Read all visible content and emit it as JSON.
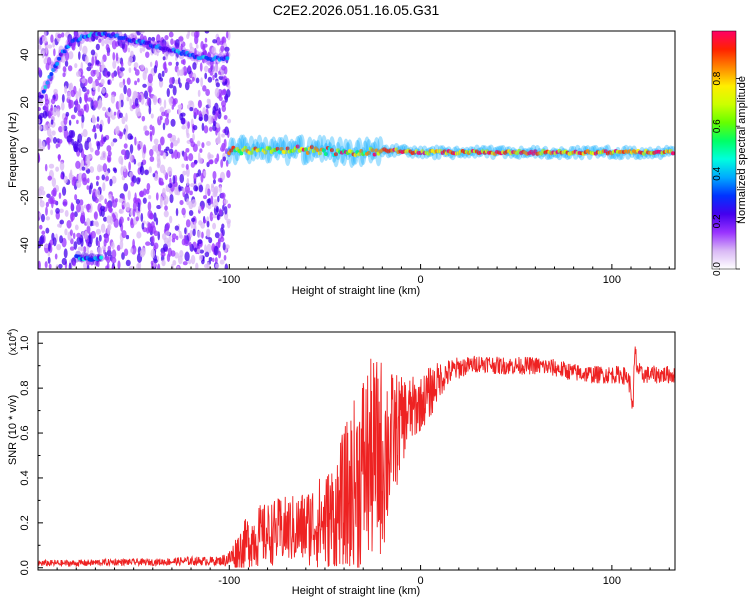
{
  "title": "C2E2.2026.051.16.05.G31",
  "colors": {
    "snr_line": "#ee2222",
    "axis": "#000000",
    "background": "#ffffff"
  },
  "chart_data": [
    {
      "type": "heatmap",
      "name": "spectrogram",
      "xlabel": "Height of straight line (km)",
      "ylabel": "Frequency (Hz)",
      "xlim": [
        -200,
        133
      ],
      "ylim": [
        -50,
        50
      ],
      "x_ticks": [
        -100,
        0,
        100
      ],
      "x_tick_labels": [
        "-100",
        "0",
        "100"
      ],
      "y_ticks": [
        -40,
        -20,
        0,
        20,
        40
      ],
      "y_tick_labels": [
        "-40",
        "-20",
        "0",
        "20",
        "40"
      ],
      "colorbar": {
        "label": "Normalized spectral amplitude",
        "range": [
          0,
          1
        ],
        "ticks": [
          0.0,
          0.2,
          0.4,
          0.6,
          0.8
        ],
        "tick_labels": [
          "0.0",
          "0.2",
          "0.4",
          "0.6",
          "0.8"
        ],
        "colormap": [
          "#ffffff",
          "#d9b8f5",
          "#9933ff",
          "#4400ee",
          "#0033ff",
          "#00aaff",
          "#00ffdd",
          "#00ff66",
          "#66ff00",
          "#ccff00",
          "#ffee00",
          "#ff8800",
          "#ff2200",
          "#ff0066"
        ]
      },
      "features": [
        {
          "label": "diffuse noise",
          "x_range": [
            -200,
            -100
          ],
          "f_range": [
            -50,
            50
          ],
          "amplitude": 0.12
        },
        {
          "label": "upper arc",
          "points": [
            [
              -198,
              23
            ],
            [
              -193,
              32
            ],
            [
              -188,
              40
            ],
            [
              -183,
              45
            ],
            [
              -175,
              48
            ],
            [
              -165,
              49
            ],
            [
              -150,
              46
            ],
            [
              -140,
              44
            ],
            [
              -130,
              42
            ],
            [
              -120,
              40
            ],
            [
              -110,
              38
            ],
            [
              -100,
              39
            ]
          ],
          "amplitude": 0.4
        },
        {
          "label": "lower blob",
          "points": [
            [
              -180,
              -45
            ],
            [
              -172,
              -46
            ],
            [
              -166,
              -45
            ]
          ],
          "amplitude": 0.45
        },
        {
          "label": "main signal",
          "points": [
            [
              -100,
              0
            ],
            [
              -80,
              0
            ],
            [
              -60,
              0
            ],
            [
              -40,
              -1
            ],
            [
              -30,
              -1
            ],
            [
              -20,
              0
            ],
            [
              0,
              -1
            ],
            [
              20,
              -1
            ],
            [
              40,
              -1
            ],
            [
              60,
              -1
            ],
            [
              80,
              -1
            ],
            [
              100,
              -1
            ],
            [
              120,
              -1
            ],
            [
              133,
              -1
            ]
          ],
          "amplitude": 0.9
        }
      ]
    },
    {
      "type": "line",
      "name": "snr",
      "xlabel": "Height of straight line (km)",
      "ylabel": "SNR (10 * v/v)",
      "y_multiplier_label": "(x10",
      "y_multiplier_exp": "4",
      "xlim": [
        -200,
        133
      ],
      "ylim": [
        -0.01,
        1.05
      ],
      "x_ticks": [
        -100,
        0,
        100
      ],
      "x_tick_labels": [
        "-100",
        "0",
        "100"
      ],
      "y_ticks": [
        0.0,
        0.2,
        0.4,
        0.6,
        0.8,
        1.0
      ],
      "y_tick_labels": [
        "0.0",
        "0.2",
        "0.4",
        "0.6",
        "0.8",
        "1.0"
      ],
      "series": [
        {
          "name": "SNR",
          "x": [
            -200,
            -180,
            -160,
            -140,
            -120,
            -105,
            -100,
            -95,
            -90,
            -85,
            -80,
            -75,
            -70,
            -65,
            -60,
            -55,
            -50,
            -45,
            -40,
            -35,
            -30,
            -25,
            -20,
            -18,
            -15,
            -12,
            -10,
            -8,
            -5,
            -2,
            0,
            5,
            10,
            15,
            20,
            25,
            30,
            35,
            40,
            50,
            60,
            70,
            80,
            90,
            100,
            105,
            108,
            110,
            111,
            112,
            113,
            115,
            120,
            125,
            133
          ],
          "y": [
            0.02,
            0.02,
            0.025,
            0.025,
            0.03,
            0.03,
            0.04,
            0.08,
            0.12,
            0.14,
            0.15,
            0.16,
            0.17,
            0.17,
            0.18,
            0.2,
            0.2,
            0.22,
            0.27,
            0.35,
            0.45,
            0.48,
            0.5,
            0.52,
            0.58,
            0.62,
            0.65,
            0.68,
            0.7,
            0.72,
            0.73,
            0.78,
            0.84,
            0.87,
            0.89,
            0.9,
            0.91,
            0.91,
            0.9,
            0.9,
            0.9,
            0.89,
            0.87,
            0.86,
            0.86,
            0.86,
            0.85,
            0.8,
            0.68,
            0.96,
            0.9,
            0.86,
            0.86,
            0.86,
            0.86
          ],
          "spread": [
            0.015,
            0.015,
            0.015,
            0.015,
            0.02,
            0.02,
            0.04,
            0.09,
            0.12,
            0.14,
            0.14,
            0.15,
            0.15,
            0.16,
            0.17,
            0.2,
            0.22,
            0.28,
            0.35,
            0.4,
            0.45,
            0.46,
            0.45,
            0.42,
            0.3,
            0.25,
            0.2,
            0.18,
            0.15,
            0.14,
            0.12,
            0.12,
            0.08,
            0.06,
            0.05,
            0.04,
            0.04,
            0.04,
            0.04,
            0.04,
            0.04,
            0.04,
            0.04,
            0.04,
            0.04,
            0.04,
            0.04,
            0.05,
            0.05,
            0.08,
            0.05,
            0.04,
            0.04,
            0.04,
            0.04
          ]
        }
      ]
    }
  ]
}
